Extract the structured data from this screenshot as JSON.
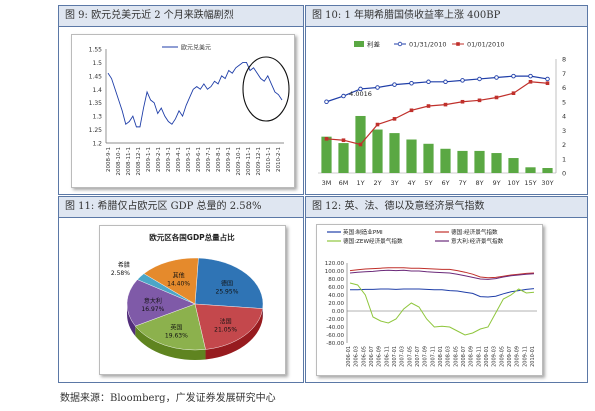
{
  "panels": [
    {
      "title": "图 9:  欧元兑美元近 2 个月来跌幅剧烈"
    },
    {
      "title": "图 10:  1 年期希腊国债收益率上涨 400BP"
    },
    {
      "title": "图 11:  希腊仅占欧元区 GDP 总量的 2.58%"
    },
    {
      "title": "图 12:  英、法、德以及意经济景气指数"
    }
  ],
  "source": "数据来源：Bloomberg，广发证券发展研究中心",
  "chart_data": [
    {
      "type": "line",
      "legend": [
        "欧元兑美元"
      ],
      "yticks": [
        "1.55",
        "1.5",
        "1.45",
        "1.4",
        "1.35",
        "1.3",
        "1.25",
        "1.2"
      ],
      "ylim": [
        1.2,
        1.55
      ],
      "xticks": [
        "2008-9-1",
        "2008-10-1",
        "2008-11-1",
        "2008-12-1",
        "2009-1-1",
        "2009-2-1",
        "2009-3-1",
        "2009-4-1",
        "2009-5-1",
        "2009-6-1",
        "2009-7-1",
        "2009-8-1",
        "2009-9-1",
        "2009-10-1",
        "2009-11-1",
        "2009-12-1",
        "2010-1-1",
        "2010-2-1"
      ],
      "series": [
        {
          "name": "欧元兑美元",
          "color": "#1f3ea8",
          "values": [
            1.46,
            1.44,
            1.4,
            1.36,
            1.32,
            1.27,
            1.28,
            1.3,
            1.26,
            1.26,
            1.33,
            1.39,
            1.36,
            1.35,
            1.31,
            1.33,
            1.3,
            1.28,
            1.27,
            1.29,
            1.32,
            1.3,
            1.34,
            1.37,
            1.4,
            1.41,
            1.4,
            1.42,
            1.4,
            1.41,
            1.43,
            1.42,
            1.45,
            1.44,
            1.47,
            1.46,
            1.48,
            1.49,
            1.5,
            1.5,
            1.47,
            1.48,
            1.46,
            1.44,
            1.43,
            1.45,
            1.42,
            1.39,
            1.38,
            1.36
          ]
        }
      ],
      "annotation": "ellipse highlight on recent decline"
    },
    {
      "type": "bar+line",
      "legend": [
        "利差",
        "01/31/2010",
        "01/01/2010"
      ],
      "categories": [
        "3M",
        "6M",
        "1Y",
        "2Y",
        "3Y",
        "4Y",
        "5Y",
        "6Y",
        "7Y",
        "8Y",
        "9Y",
        "10Y",
        "15Y",
        "30Y"
      ],
      "bar_series": {
        "name": "利差",
        "color": "#5aa843",
        "values": [
          2.55,
          2.1,
          4.0016,
          3.05,
          2.8,
          2.35,
          2.05,
          1.7,
          1.55,
          1.55,
          1.4,
          1.05,
          0.4,
          0.35
        ]
      },
      "line_series": [
        {
          "name": "01/31/2010",
          "color": "#1f3ea8",
          "values": [
            5.0,
            5.4,
            5.9,
            6.0,
            6.2,
            6.3,
            6.4,
            6.4,
            6.5,
            6.6,
            6.7,
            6.8,
            6.8,
            6.6
          ]
        },
        {
          "name": "01/01/2010",
          "color": "#c0302b",
          "values": [
            2.4,
            2.3,
            2.0,
            3.4,
            3.8,
            4.4,
            4.7,
            4.8,
            5.0,
            5.1,
            5.3,
            5.6,
            6.4,
            6.3
          ]
        }
      ],
      "yticks": [
        "8",
        "7",
        "6",
        "5",
        "4",
        "3",
        "2",
        "1",
        "0"
      ],
      "ylim": [
        0,
        8
      ],
      "bar_label": "4.0016"
    },
    {
      "type": "pie",
      "title": "欧元区各国GDP总量占比",
      "slices": [
        {
          "label": "德国",
          "value": 25.95,
          "pct": "25.95%",
          "color": "#2f74b5"
        },
        {
          "label": "法国",
          "value": 21.05,
          "pct": "21.05%",
          "color": "#c4484c"
        },
        {
          "label": "英国",
          "value": 19.63,
          "pct": "19.63%",
          "color": "#8cb14d"
        },
        {
          "label": "意大利",
          "value": 16.97,
          "pct": "16.97%",
          "color": "#7f5aa8"
        },
        {
          "label": "希腊",
          "value": 2.58,
          "pct": "2.58%",
          "color": "#4ca6c7"
        },
        {
          "label": "其他",
          "value": 14.4,
          "pct": "14.40%",
          "color": "#e58a2c"
        }
      ]
    },
    {
      "type": "line",
      "legend": [
        "英国:制造业PMI",
        "德国:经济景气指数",
        "德国:ZEW经济景气指数",
        "意大利:经济景气指数"
      ],
      "yticks": [
        "120.00",
        "100.00",
        "80.00",
        "60.00",
        "40.00",
        "20.00",
        "0.00",
        "-20.00",
        "-40.00",
        "-60.00",
        "-80.00"
      ],
      "ylim": [
        -80,
        120
      ],
      "xticks": [
        "2006-01",
        "2006-03",
        "2006-05",
        "2006-07",
        "2006-09",
        "2006-11",
        "2007-01",
        "2007-03",
        "2007-05",
        "2007-07",
        "2007-09",
        "2007-11",
        "2008-01",
        "2008-03",
        "2008-05",
        "2008-07",
        "2008-09",
        "2008-11",
        "2009-01",
        "2009-03",
        "2009-05",
        "2009-07",
        "2009-09",
        "2009-11",
        "2010-01"
      ],
      "series": [
        {
          "name": "英国:制造业PMI",
          "color": "#1f3ea8",
          "values": [
            53,
            53,
            54,
            54,
            55,
            55,
            54,
            55,
            55,
            55,
            54,
            53,
            53,
            51,
            50,
            47,
            44,
            36,
            35,
            37,
            43,
            48,
            51,
            54,
            56
          ]
        },
        {
          "name": "德国:经济景气指数",
          "color": "#c0302b",
          "values": [
            101,
            103,
            105,
            106,
            107,
            108,
            108,
            108,
            107,
            107,
            106,
            105,
            104,
            104,
            101,
            97,
            92,
            85,
            83,
            84,
            87,
            90,
            92,
            94,
            95
          ]
        },
        {
          "name": "德国:ZEW经济景气指数",
          "color": "#8fc63d",
          "values": [
            70,
            65,
            40,
            -15,
            -25,
            -30,
            -20,
            5,
            20,
            10,
            -20,
            -40,
            -38,
            -40,
            -50,
            -60,
            -55,
            -45,
            -40,
            -5,
            30,
            40,
            55,
            45,
            47
          ]
        },
        {
          "name": "意大利:经济景气指数",
          "color": "#6b2a7a",
          "values": [
            95,
            97,
            98,
            99,
            101,
            102,
            101,
            102,
            100,
            100,
            98,
            97,
            96,
            95,
            92,
            88,
            84,
            80,
            79,
            81,
            85,
            88,
            90,
            92,
            93
          ]
        }
      ]
    }
  ]
}
